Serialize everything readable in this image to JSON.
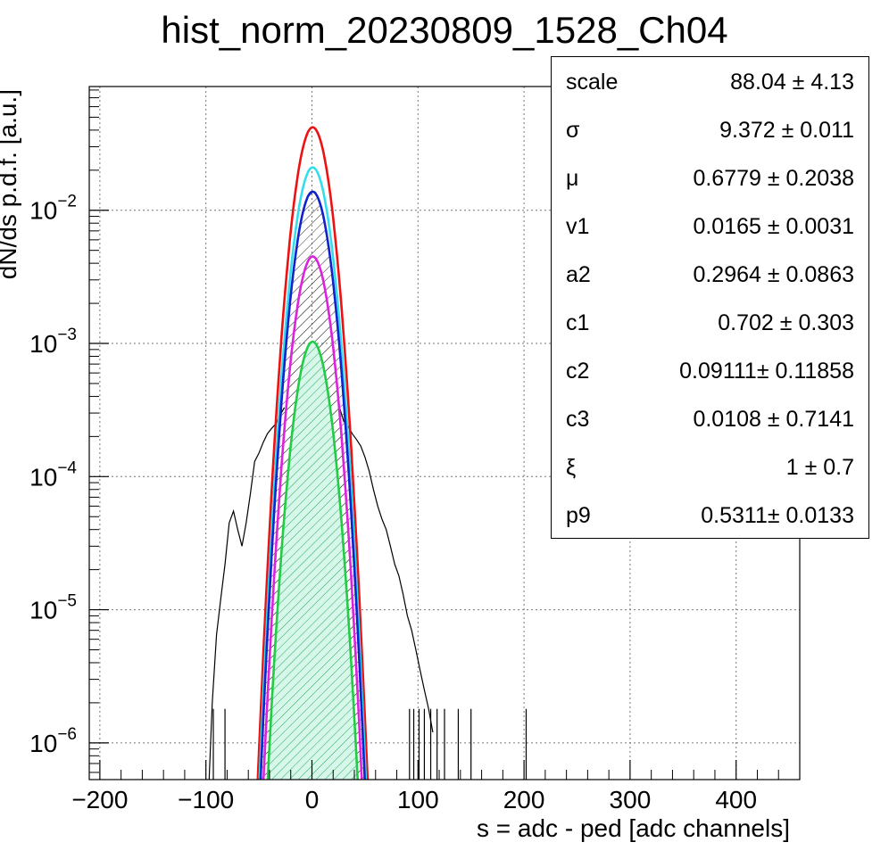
{
  "chart_data": {
    "type": "line",
    "title": "hist_norm_20230809_1528_Ch04",
    "xlabel": "s = adc - ped [adc channels]",
    "ylabel": "dN/ds p.d.f. [a.u.]",
    "xlim": [
      -210,
      460
    ],
    "ylim": [
      5.3e-07,
      0.085
    ],
    "yscale": "log",
    "grid": true,
    "x_ticks": [
      -200,
      -100,
      0,
      100,
      200,
      300,
      400
    ],
    "x_tick_labels": [
      "−200",
      "−100",
      "0",
      "100",
      "200",
      "300",
      "400"
    ],
    "y_ticks": [
      1e-06,
      1e-05,
      0.0001,
      0.001,
      0.01
    ],
    "y_tick_labels": [
      {
        "mantissa": "10",
        "exponent": "−6"
      },
      {
        "mantissa": "10",
        "exponent": "−5"
      },
      {
        "mantissa": "10",
        "exponent": "−4"
      },
      {
        "mantissa": "10",
        "exponent": "−3"
      },
      {
        "mantissa": "10",
        "exponent": "−2"
      }
    ],
    "series": [
      {
        "color": "#ee1111",
        "peak": 0.042,
        "mu": 0.68,
        "sigma": 10.9,
        "fill": "none"
      },
      {
        "color": "#33ddee",
        "peak": 0.021,
        "mu": 0.68,
        "sigma": 10.9,
        "fill": "none"
      },
      {
        "color": "#1122cc",
        "peak": 0.0138,
        "mu": 0.68,
        "sigma": 10.9,
        "fill": "hatch"
      },
      {
        "color": "#dd22dd",
        "peak": 0.0045,
        "mu": 0.68,
        "sigma": 10.9,
        "fill": "hatch"
      },
      {
        "color": "#22cc44",
        "peak": 0.00103,
        "mu": 0.68,
        "sigma": 10.9,
        "fill": "hatch-green"
      }
    ],
    "histogram": {
      "color": "#000000",
      "points": [
        [
          -97,
          5e-07
        ],
        [
          -94,
          2e-06
        ],
        [
          -90,
          6.5e-06
        ],
        [
          -86,
          1.2e-05
        ],
        [
          -82,
          2.2e-05
        ],
        [
          -78,
          4.5e-05
        ],
        [
          -74,
          5.5e-05
        ],
        [
          -70,
          4e-05
        ],
        [
          -66,
          3e-05
        ],
        [
          -62,
          4.5e-05
        ],
        [
          -58,
          7.5e-05
        ],
        [
          -54,
          0.00013
        ],
        [
          -50,
          0.00015
        ],
        [
          -46,
          0.00018
        ],
        [
          -42,
          0.00021
        ],
        [
          -38,
          0.00023
        ],
        [
          -34,
          0.00025
        ],
        [
          -30,
          0.00029
        ],
        [
          -26,
          0.00033
        ],
        [
          26,
          0.00033
        ],
        [
          30,
          0.00026
        ],
        [
          34,
          0.00024
        ],
        [
          38,
          0.00021
        ],
        [
          42,
          0.00019
        ],
        [
          46,
          0.00017
        ],
        [
          50,
          0.00014
        ],
        [
          54,
          0.00011
        ],
        [
          58,
          8e-05
        ],
        [
          62,
          6e-05
        ],
        [
          66,
          4.8e-05
        ],
        [
          70,
          4e-05
        ],
        [
          74,
          3e-05
        ],
        [
          78,
          2.2e-05
        ],
        [
          82,
          1.8e-05
        ],
        [
          86,
          1.3e-05
        ],
        [
          90,
          9e-06
        ],
        [
          94,
          7e-06
        ],
        [
          98,
          5e-06
        ],
        [
          102,
          3.5e-06
        ],
        [
          106,
          2.5e-06
        ],
        [
          110,
          1.8e-06
        ],
        [
          114,
          1.2e-06
        ]
      ],
      "spikes_x": [
        -93,
        -82,
        92,
        96,
        101,
        106,
        112,
        118,
        125,
        138,
        150,
        202,
        463
      ]
    }
  },
  "stats_box": {
    "rows": [
      {
        "name": "scale",
        "value": "88.04 ± 4.13"
      },
      {
        "name": "σ",
        "value": "9.372 ± 0.011"
      },
      {
        "name": "μ",
        "value": "0.6779 ± 0.2038"
      },
      {
        "name": "v1",
        "value": "0.0165 ± 0.0031"
      },
      {
        "name": "a2",
        "value": "0.2964 ± 0.0863"
      },
      {
        "name": "c1",
        "value": "0.702 ± 0.303"
      },
      {
        "name": "c2",
        "value": "0.09111± 0.11858"
      },
      {
        "name": "c3",
        "value": "0.0108 ± 0.7141"
      },
      {
        "name": "ξ",
        "value": "1 ± 0.7"
      },
      {
        "name": "p9",
        "value": "0.5311± 0.0133"
      }
    ]
  }
}
